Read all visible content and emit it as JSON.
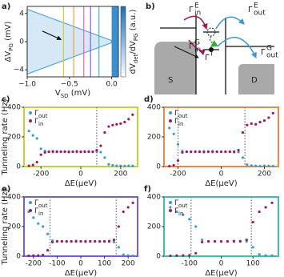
{
  "chart_data": [
    {
      "type": "heatmap",
      "panel": "a)",
      "xlabel": [
        "V",
        "SD",
        " (mV)"
      ],
      "ylabel": [
        "ΔV",
        "PG",
        " (mV)"
      ],
      "colorbar_label": [
        "dV",
        "det",
        "/dV",
        "PG",
        " (a.u.)"
      ],
      "xlim": [
        -1,
        0.08
      ],
      "xticks": [
        {
          "value": -1,
          "label": "−1.0"
        },
        {
          "value": -0.5,
          "label": "−0.5"
        },
        {
          "value": 0,
          "label": "0.0"
        }
      ],
      "ylim": [
        -5,
        5
      ],
      "yticks": [
        {
          "value": -4,
          "label": "−4"
        },
        0,
        4
      ],
      "cut_lines": {
        "x": [
          -0.57,
          -0.45,
          -0.33,
          -0.25,
          -0.15
        ],
        "colors": [
          "#c8d23a",
          "#f0a040",
          "#e86a9a",
          "#8060d8",
          "#40c0b0"
        ]
      }
    },
    {
      "type": "scatter",
      "panel": "c)",
      "frame_color": "#c5d13b",
      "xlabel": "ΔE(μeV)",
      "ylabel": "Tunneling rate (Hz)",
      "xlim": [
        -285,
        285
      ],
      "xticks": [
        -200,
        0,
        200
      ],
      "ylim": [
        0,
        400
      ],
      "yticks": [
        0,
        200,
        400
      ],
      "dashed": [
        80
      ],
      "x": [
        -260,
        -240,
        -220,
        -200,
        -180,
        -160,
        -140,
        -120,
        -100,
        -80,
        -60,
        -40,
        -20,
        0,
        20,
        40,
        60,
        80,
        100,
        120,
        140,
        160,
        180,
        200,
        220,
        240,
        260
      ],
      "series": [
        {
          "name": [
            "Γ",
            "out"
          ],
          "color": "#3a9ad9",
          "values": [
            240,
            210,
            190,
            120,
            105,
            100,
            98,
            102,
            100,
            99,
            101,
            100,
            98,
            100,
            102,
            100,
            99,
            101,
            97,
            60,
            15,
            8,
            5,
            4,
            3,
            5,
            4
          ]
        },
        {
          "name": [
            "Γ",
            "in"
          ],
          "color": "#a01a5c",
          "values": [
            5,
            10,
            30,
            80,
            95,
            100,
            102,
            99,
            100,
            101,
            98,
            100,
            102,
            99,
            100,
            101,
            100,
            110,
            140,
            230,
            270,
            280,
            285,
            290,
            300,
            320,
            350
          ]
        }
      ]
    },
    {
      "type": "scatter",
      "panel": "d)",
      "frame_color": "#e8894a",
      "xlabel": "ΔE(μeV)",
      "xlim": [
        -265,
        265
      ],
      "xticks": [
        -200,
        0,
        200
      ],
      "ylim": [
        0,
        400
      ],
      "yticks": [
        0,
        200,
        400
      ],
      "dashed": [
        -200,
        110
      ],
      "x": [
        -240,
        -220,
        -200,
        -180,
        -160,
        -140,
        -120,
        -100,
        -80,
        -60,
        -40,
        -20,
        0,
        20,
        40,
        60,
        80,
        100,
        120,
        140,
        160,
        180,
        200,
        220,
        240
      ],
      "series": [
        {
          "name": [
            "Γ",
            "out"
          ],
          "color": "#3a9ad9",
          "values": [
            260,
            220,
            150,
            105,
            100,
            101,
            99,
            100,
            102,
            100,
            98,
            100,
            101,
            99,
            100,
            102,
            98,
            60,
            12,
            6,
            4,
            3,
            5,
            4,
            3
          ]
        },
        {
          "name": [
            "Γ",
            "in"
          ],
          "color": "#a01a5c",
          "values": [
            3,
            8,
            40,
            95,
            100,
            99,
            101,
            100,
            98,
            100,
            102,
            100,
            99,
            101,
            100,
            98,
            110,
            230,
            280,
            290,
            285,
            300,
            310,
            330,
            360
          ]
        }
      ]
    },
    {
      "type": "scatter",
      "panel": "e)",
      "frame_color": "#7a5bd6",
      "xlabel": "ΔE(μeV)",
      "ylabel": "Tunneling rate (Hz)",
      "xlim": [
        -240,
        240
      ],
      "xticks": [
        -200,
        -100,
        0,
        100,
        200
      ],
      "ylim": [
        0,
        400
      ],
      "yticks": [
        0,
        200,
        400
      ],
      "dashed": [
        -130,
        150
      ],
      "x": [
        -220,
        -200,
        -180,
        -160,
        -140,
        -120,
        -100,
        -80,
        -60,
        -40,
        -20,
        0,
        20,
        40,
        60,
        80,
        100,
        120,
        140,
        160,
        180,
        200,
        220
      ],
      "series": [
        {
          "name": [
            "Γ",
            "out"
          ],
          "color": "#3a9ad9",
          "values": [
            300,
            260,
            220,
            200,
            150,
            105,
            100,
            99,
            101,
            100,
            98,
            100,
            102,
            100,
            99,
            101,
            100,
            98,
            95,
            60,
            10,
            5,
            3
          ]
        },
        {
          "name": [
            "Γ",
            "in"
          ],
          "color": "#a01a5c",
          "values": [
            3,
            4,
            5,
            8,
            40,
            95,
            100,
            101,
            99,
            100,
            102,
            100,
            98,
            100,
            101,
            99,
            100,
            102,
            110,
            200,
            300,
            330,
            360
          ]
        }
      ]
    },
    {
      "type": "scatter",
      "panel": "f)",
      "frame_color": "#3fbfaa",
      "xlabel": "ΔE(μeV)",
      "xlim": [
        -180,
        180
      ],
      "xticks": [
        -100,
        0,
        100
      ],
      "ylim": [
        0,
        400
      ],
      "yticks": [
        0,
        200,
        400
      ],
      "dashed": [
        -95,
        95
      ],
      "x": [
        -160,
        -140,
        -120,
        -100,
        -80,
        -60,
        -40,
        -20,
        0,
        20,
        40,
        60,
        80,
        100,
        120,
        140,
        160
      ],
      "series": [
        {
          "name": [
            "Γ",
            "out"
          ],
          "color": "#3a9ad9",
          "values": [
            330,
            300,
            280,
            250,
            200,
            110,
            100,
            99,
            101,
            100,
            98,
            102,
            100,
            60,
            12,
            5,
            4
          ]
        },
        {
          "name": [
            "Γ",
            "in"
          ],
          "color": "#a01a5c",
          "values": [
            3,
            4,
            5,
            6,
            20,
            95,
            100,
            101,
            99,
            100,
            102,
            100,
            110,
            230,
            300,
            330,
            360
          ]
        }
      ]
    }
  ],
  "diagram": {
    "panel": "b)",
    "source": "S",
    "drain": "D",
    "in_e": [
      "Γ",
      "E",
      "in"
    ],
    "out_e": [
      "Γ",
      "E",
      "out"
    ],
    "in_g": [
      "Γ",
      "G",
      "in"
    ],
    "out_g": [
      "Γ",
      "G",
      "out"
    ],
    "inel": [
      "Γ",
      "I"
    ]
  }
}
